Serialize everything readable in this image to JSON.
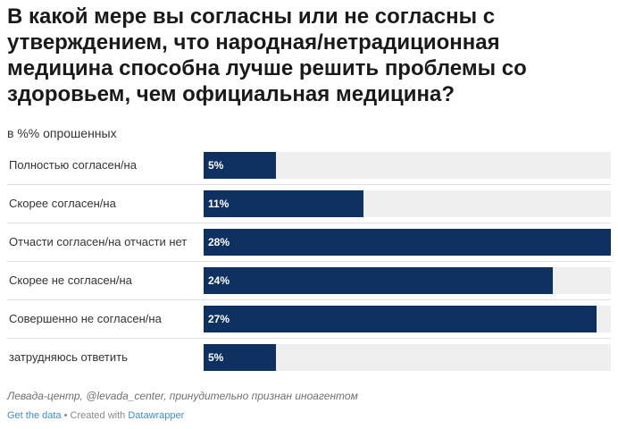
{
  "title": "В какой мере вы согласны или не согласны с утверждением, что народная/нетрадиционная медицина способна лучше решить проблемы со здоровьем, чем официальная медицина?",
  "subtitle": "в %% опрошенных",
  "source": "Левада-центр, @levada_center, принудительно признан иноагентом",
  "footer": {
    "get_data": "Get the data",
    "separator": " • Created with ",
    "datawrapper": "Datawrapper"
  },
  "colors": {
    "bar": "#0e3161",
    "track": "#efefef"
  },
  "chart_data": {
    "type": "bar",
    "orientation": "horizontal",
    "categories": [
      "Полностью согласен/на",
      "Скорее согласен/на",
      "Отчасти согласен/на отчасти нет",
      "Скорее не согласен/на",
      "Совершенно не согласен/на",
      "затрудняюсь ответить"
    ],
    "values": [
      5,
      11,
      28,
      24,
      27,
      5
    ],
    "value_labels": [
      "5%",
      "11%",
      "28%",
      "24%",
      "27%",
      "5%"
    ],
    "xlim": [
      0,
      28
    ],
    "grid": false
  }
}
